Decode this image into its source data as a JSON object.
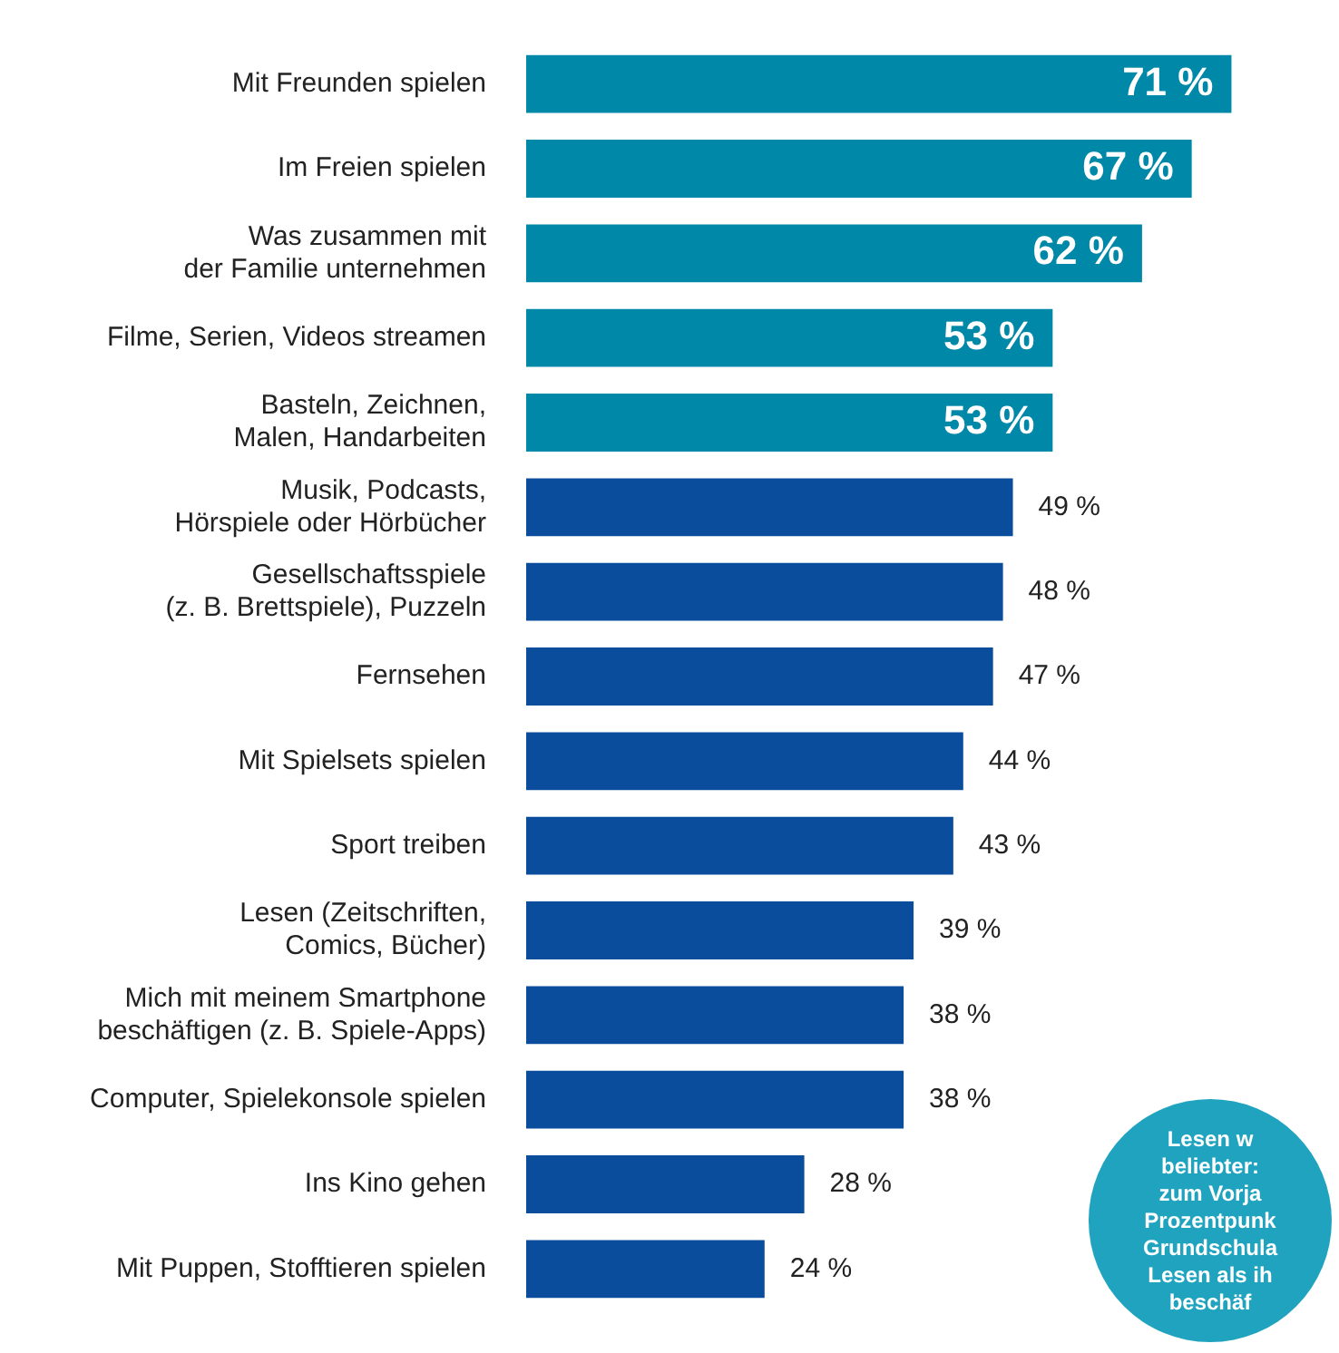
{
  "chart_data": {
    "type": "bar",
    "orientation": "horizontal",
    "categories": [
      "Mit Freunden spielen",
      "Im Freien spielen",
      "Was zusammen mit\nder Familie unternehmen",
      "Filme, Serien, Videos streamen",
      "Basteln, Zeichnen,\nMalen, Handarbeiten",
      "Musik, Podcasts,\nHörspiele oder Hörbücher",
      "Gesellschaftsspiele\n(z. B. Brettspiele), Puzzeln",
      "Fernsehen",
      "Mit Spielsets spielen",
      "Sport treiben",
      "Lesen (Zeitschriften,\nComics, Bücher)",
      "Mich mit meinem Smartphone\nbeschäftigen (z. B. Spiele-Apps)",
      "Computer, Spielekonsole spielen",
      "Ins Kino gehen",
      "Mit Puppen, Stofftieren spielen"
    ],
    "values": [
      71,
      67,
      62,
      53,
      53,
      49,
      48,
      47,
      44,
      43,
      39,
      38,
      38,
      28,
      24
    ],
    "colors": [
      "#0088a8",
      "#0088a8",
      "#0088a8",
      "#0088a8",
      "#0088a8",
      "#0a4d9c",
      "#0a4d9c",
      "#0a4d9c",
      "#0a4d9c",
      "#0a4d9c",
      "#0a4d9c",
      "#0a4d9c",
      "#0a4d9c",
      "#0a4d9c",
      "#0a4d9c"
    ],
    "value_labels": [
      "71 %",
      "67 %",
      "62 %",
      "53 %",
      "53 %",
      "49 %",
      "48 %",
      "47 %",
      "44 %",
      "43 %",
      "39 %",
      "38 %",
      "38 %",
      "28 %",
      "24 %"
    ],
    "annotations": [
      "Lesen w\nbeliebter:\nzum Vorja\nProzentpunk\nGrundschula\nLesen als ih\nbeschäf"
    ],
    "legend": false
  }
}
